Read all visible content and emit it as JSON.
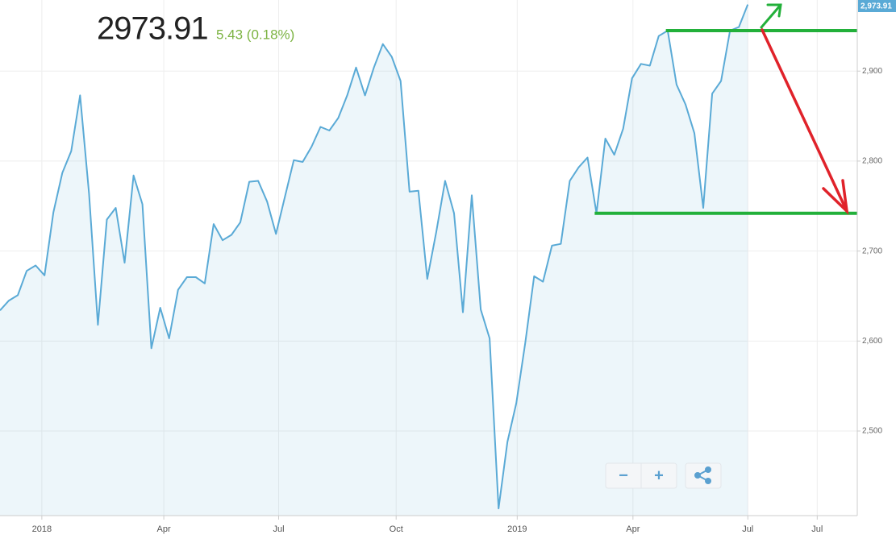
{
  "header": {
    "price": "2973.91",
    "change": "5.43 (0.18%)"
  },
  "controls": {
    "zoom_out": "−",
    "zoom_in": "+"
  },
  "chart_data": {
    "type": "area",
    "x": [
      0,
      1,
      2,
      3,
      4,
      5,
      6,
      7,
      8,
      9,
      10,
      11,
      12,
      13,
      14,
      15,
      16,
      17,
      18,
      19,
      20,
      21,
      22,
      23,
      24,
      25,
      26,
      27,
      28,
      29,
      30,
      31,
      32,
      33,
      34,
      35,
      36,
      37,
      38,
      39,
      40,
      41,
      42,
      43,
      44,
      45,
      46,
      47,
      48,
      49,
      50,
      51,
      52,
      53,
      54,
      55,
      56,
      57,
      58,
      59,
      60,
      61,
      62,
      63,
      64,
      65,
      66,
      67,
      68,
      69,
      70,
      71,
      72,
      73,
      74,
      75,
      76,
      77,
      78,
      79,
      80,
      81,
      82,
      83,
      84
    ],
    "series": [
      {
        "color": "#5aaad6",
        "values": [
          2634,
          2645,
          2651,
          2678,
          2684,
          2673,
          2743,
          2787,
          2811,
          2873,
          2764,
          2618,
          2735,
          2748,
          2687,
          2784,
          2752,
          2592,
          2637,
          2603,
          2657,
          2671,
          2671,
          2664,
          2730,
          2712,
          2718,
          2732,
          2777,
          2778,
          2755,
          2719,
          2760,
          2801,
          2799,
          2816,
          2838,
          2834,
          2848,
          2873,
          2904,
          2873,
          2904,
          2930,
          2916,
          2889,
          2766,
          2767,
          2669,
          2721,
          2778,
          2742,
          2632,
          2762,
          2635,
          2603,
          2414,
          2488,
          2531,
          2598,
          2672,
          2666,
          2706,
          2708,
          2778,
          2793,
          2804,
          2742,
          2825,
          2807,
          2836,
          2892,
          2908,
          2906,
          2939,
          2945,
          2885,
          2863,
          2831,
          2748,
          2875,
          2889,
          2945,
          2949,
          2974
        ]
      }
    ],
    "xlim": [
      0,
      96.3
    ],
    "xticks": [
      {
        "value": 4.7,
        "label": "2018"
      },
      {
        "value": 18.4,
        "label": "Apr"
      },
      {
        "value": 31.3,
        "label": "Jul"
      },
      {
        "value": 44.5,
        "label": "Oct"
      },
      {
        "value": 58.1,
        "label": "2019"
      },
      {
        "value": 71.1,
        "label": "Apr"
      },
      {
        "value": 84,
        "label": "Jul"
      },
      {
        "value": 91.8,
        "label": "Jul"
      }
    ],
    "ylim": [
      2406,
      2979
    ],
    "yticks": [
      {
        "value": 2500,
        "label": "2,500"
      },
      {
        "value": 2600,
        "label": "2,600"
      },
      {
        "value": 2700,
        "label": "2,700"
      },
      {
        "value": 2800,
        "label": "2,800"
      },
      {
        "value": 2900,
        "label": "2,900"
      }
    ],
    "last_label": "2,973.91",
    "levels": [
      {
        "value": 2945,
        "from": 74.8,
        "color": "#22b03a"
      },
      {
        "value": 2742,
        "from": 66.8,
        "color": "#22b03a"
      }
    ],
    "grid": true
  }
}
